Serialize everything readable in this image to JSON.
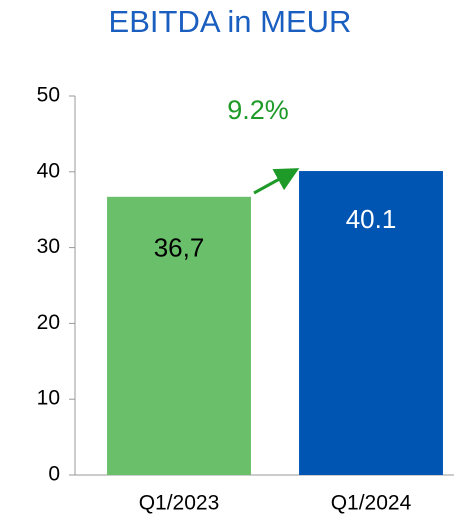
{
  "chart_data": {
    "type": "bar",
    "title": "EBITDA in MEUR",
    "categories": [
      "Q1/2023",
      "Q1/2024"
    ],
    "values": [
      36.7,
      40.1
    ],
    "value_labels": [
      "36,7",
      "40.1"
    ],
    "colors": [
      "#6abf6a",
      "#0055b3"
    ],
    "ylim": [
      0,
      50
    ],
    "yticks": [
      0,
      10,
      20,
      30,
      40,
      50
    ],
    "grid": false,
    "annotation": "9.2%"
  }
}
